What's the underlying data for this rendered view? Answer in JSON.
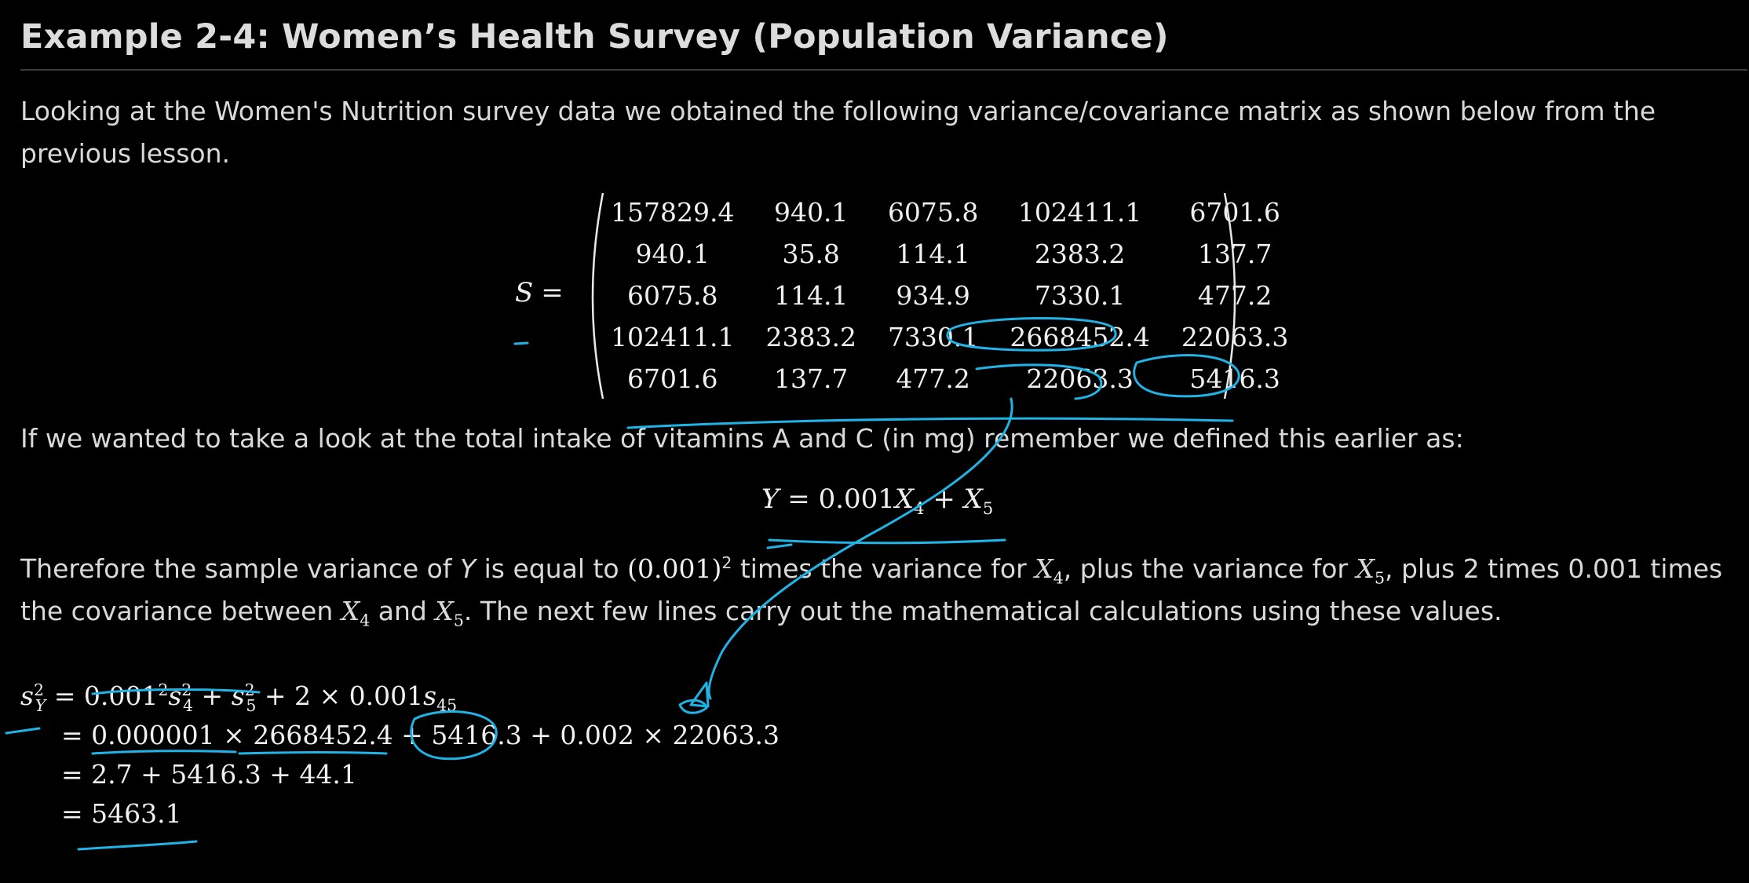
{
  "title": "Example 2-4: Women’s Health Survey (Population Variance)",
  "intro": {
    "text": "Looking at the Women's Nutrition survey data we obtained the following variance/covariance matrix as shown below from the previous lesson."
  },
  "matrix": {
    "label_var": "S",
    "label_eq": "=",
    "rows": [
      [
        "157829.4",
        "940.1",
        "6075.8",
        "102411.1",
        "6701.6"
      ],
      [
        "940.1",
        "35.8",
        "114.1",
        "2383.2",
        "137.7"
      ],
      [
        "6075.8",
        "114.1",
        "934.9",
        "7330.1",
        "477.2"
      ],
      [
        "102411.1",
        "2383.2",
        "7330.1",
        "2668452.4",
        "22063.3"
      ],
      [
        "6701.6",
        "137.7",
        "477.2",
        "22063.3",
        "5416.3"
      ]
    ]
  },
  "para2": {
    "text": "If we wanted to take a look at the total intake of vitamins A and C (in mg) remember we defined this earlier as:"
  },
  "equation_y": {
    "lhs": "Y",
    "eq": " = ",
    "coef": "0.001",
    "x4": "X",
    "x4_sub": "4",
    "plus": " + ",
    "x5": "X",
    "x5_sub": "5"
  },
  "para3": {
    "t1": "Therefore the sample variance of ",
    "t1_var": "Y",
    "t2": " is equal to ",
    "m_coef": "(0.001)",
    "m_sup": "2",
    "t3": " times the variance for ",
    "v4": "X",
    "v4_sub": "4",
    "t4": ", plus the variance for ",
    "v5": "X",
    "v5_sub": "5",
    "t5": ", plus 2 times 0.001 times the covariance between ",
    "c4": "X",
    "c4_sub": "4",
    "t6": " and ",
    "c5": "X",
    "c5_sub": "5",
    "t7": ". The next few lines carry out the mathematical calculations using these values."
  },
  "calculation": {
    "line1": {
      "s": "s",
      "sub": "Y",
      "sup": "2",
      "eq": " = ",
      "coef": "0.001",
      "coef_sup": "2",
      "s4": "s",
      "s4_sub": "4",
      "s4_sup": "2",
      "plus1": " + ",
      "s5": "s",
      "s5_sub": "5",
      "s5_sup": "2",
      "rest": " + 2 × 0.001",
      "s45": "s",
      "s45_sub": "45"
    },
    "line2": "= 0.000001 × 2668452.4 + 5416.3 + 0.002 × 22063.3",
    "line3": "= 2.7 + 5416.3 + 44.1",
    "line4": "= 5463.1"
  }
}
